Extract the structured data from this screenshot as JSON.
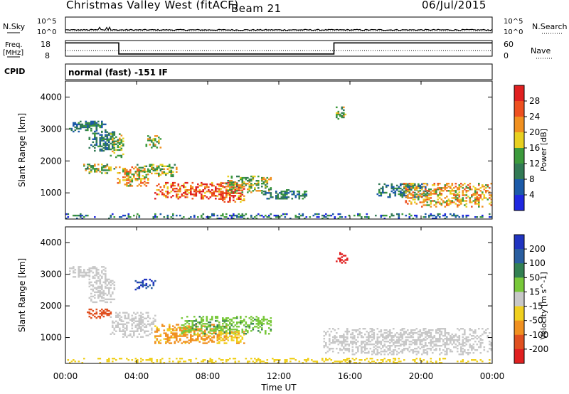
{
  "header": {
    "station": "Christmas Valley West (fitACF)",
    "beam": "Beam 21",
    "date": "06/Jul/2015"
  },
  "param_panels": {
    "noise": {
      "left_label": "N.Sky",
      "left_ticks": [
        "10^5",
        "10^0"
      ],
      "right_ticks": [
        "10^5",
        "10^0"
      ],
      "right_label": "N.Search",
      "sky_level_log10": 0.9,
      "search_level_log10": 0.6
    },
    "freq": {
      "left_label_1": "Freq.",
      "left_label_2": "[MHz]",
      "left_ticks": [
        "18",
        "8"
      ],
      "right_ticks": [
        "60",
        "0"
      ],
      "right_label": "Nave",
      "steps_hours_mhz": [
        {
          "x0": 0.0,
          "x1": 3.0,
          "mhz": 16.5
        },
        {
          "x0": 3.0,
          "x1": 15.1,
          "mhz": 9.4
        },
        {
          "x0": 15.1,
          "x1": 24.0,
          "mhz": 16.5
        }
      ],
      "nave_level": 21
    },
    "cpid": {
      "label": "CPID",
      "text": "normal (fast) -151 IF"
    }
  },
  "x_axis": {
    "label": "Time UT",
    "ticks": [
      "00:00",
      "04:00",
      "08:00",
      "12:00",
      "16:00",
      "20:00",
      "00:00"
    ]
  },
  "chart_data": [
    {
      "type": "heatmap",
      "panel": "power",
      "ylabel": "Slant Range [km]",
      "yticks": [
        "1000",
        "2000",
        "3000",
        "4000"
      ],
      "ylim": [
        180,
        4500
      ],
      "xlim_hours": [
        0,
        24
      ],
      "colorbar": {
        "label": "Power [dB]",
        "ticks": [
          "4",
          "8",
          "12",
          "16",
          "20",
          "24",
          "28"
        ],
        "colors": [
          "#1f28e0",
          "#1c5aa8",
          "#327a55",
          "#3c9a3c",
          "#e8d020",
          "#f09020",
          "#ee5020",
          "#e02020"
        ]
      },
      "regions": [
        {
          "t": [
            0.2,
            2.3
          ],
          "r": [
            2900,
            3250
          ],
          "level": "low"
        },
        {
          "t": [
            1.3,
            2.8
          ],
          "r": [
            2300,
            2950
          ],
          "level": "low"
        },
        {
          "t": [
            2.5,
            3.3
          ],
          "r": [
            2100,
            2850
          ],
          "level": "mid"
        },
        {
          "t": [
            4.5,
            5.3
          ],
          "r": [
            2400,
            2800
          ],
          "level": "mid"
        },
        {
          "t": [
            1.0,
            3.0
          ],
          "r": [
            1600,
            1900
          ],
          "level": "mid"
        },
        {
          "t": [
            2.9,
            4.6
          ],
          "r": [
            1200,
            1800
          ],
          "level": "high"
        },
        {
          "t": [
            4.0,
            6.2
          ],
          "r": [
            1500,
            1900
          ],
          "level": "mid"
        },
        {
          "t": [
            5.0,
            9.5
          ],
          "r": [
            800,
            1300
          ],
          "level": "max"
        },
        {
          "t": [
            8.5,
            10.0
          ],
          "r": [
            700,
            1300
          ],
          "level": "max"
        },
        {
          "t": [
            9.0,
            11.5
          ],
          "r": [
            1000,
            1500
          ],
          "level": "mid"
        },
        {
          "t": [
            11.0,
            13.5
          ],
          "r": [
            800,
            1100
          ],
          "level": "low"
        },
        {
          "t": [
            15.2,
            15.7
          ],
          "r": [
            3300,
            3700
          ],
          "level": "mid"
        },
        {
          "t": [
            17.5,
            20.5
          ],
          "r": [
            850,
            1300
          ],
          "level": "low"
        },
        {
          "t": [
            19.0,
            24.0
          ],
          "r": [
            550,
            1300
          ],
          "level": "high"
        },
        {
          "t": [
            0.0,
            24.0
          ],
          "r": [
            180,
            320
          ],
          "level": "noise"
        }
      ]
    },
    {
      "type": "heatmap",
      "panel": "velocity",
      "ylabel": "Slant Range [km]",
      "yticks": [
        "1000",
        "2000",
        "3000",
        "4000"
      ],
      "ylim": [
        180,
        4500
      ],
      "xlim_hours": [
        0,
        24
      ],
      "colorbar": {
        "label": "Velocity [m s^-1]",
        "ticks": [
          "200",
          "100",
          "50",
          "15",
          "-15",
          "-50",
          "-100",
          "-200"
        ],
        "colors": [
          "#2034c0",
          "#2a5ea0",
          "#328052",
          "#78c83a",
          "#c8c8c8",
          "#f0d020",
          "#f09020",
          "#e05020",
          "#e02020"
        ]
      },
      "regions": [
        {
          "t": [
            0.2,
            2.3
          ],
          "r": [
            2900,
            3250
          ],
          "v": 0
        },
        {
          "t": [
            1.3,
            2.8
          ],
          "r": [
            2100,
            2950
          ],
          "v": 0
        },
        {
          "t": [
            3.8,
            5.0
          ],
          "r": [
            2500,
            2850
          ],
          "v": 200
        },
        {
          "t": [
            1.2,
            2.6
          ],
          "r": [
            1600,
            1900
          ],
          "v": -150
        },
        {
          "t": [
            2.5,
            5.0
          ],
          "r": [
            1000,
            1800
          ],
          "v": 0
        },
        {
          "t": [
            5.0,
            9.0
          ],
          "r": [
            800,
            1400
          ],
          "v": -60
        },
        {
          "t": [
            6.5,
            11.5
          ],
          "r": [
            1100,
            1650
          ],
          "v": 40
        },
        {
          "t": [
            8.5,
            10.0
          ],
          "r": [
            800,
            1200
          ],
          "v": -40
        },
        {
          "t": [
            15.2,
            15.8
          ],
          "r": [
            3300,
            3700
          ],
          "v": -220
        },
        {
          "t": [
            14.5,
            24.0
          ],
          "r": [
            450,
            1300
          ],
          "v": 0
        },
        {
          "t": [
            0.0,
            24.0
          ],
          "r": [
            180,
            320
          ],
          "v": -30
        }
      ]
    }
  ]
}
